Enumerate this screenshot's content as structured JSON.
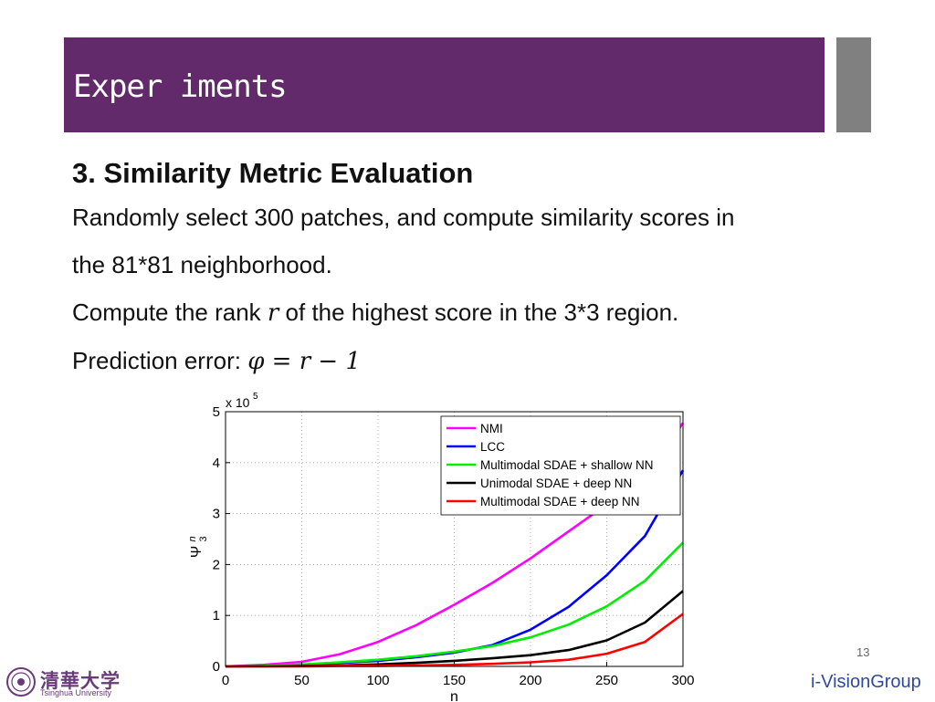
{
  "header": {
    "title": "Exper iments"
  },
  "content": {
    "heading": "3. Similarity Metric Evaluation",
    "line1": "Randomly select 300 patches, and compute similarity scores in",
    "line2": "the 81*81 neighborhood.",
    "line3_pre": "Compute the rank ",
    "line3_var": "r",
    "line3_post": " of the highest score in the 3*3 region.",
    "line4_pre": "Prediction error: ",
    "line4_formula": "φ = r − 1"
  },
  "footer": {
    "page_number": "13",
    "brand": "i-VisionGroup",
    "logo_cn": "清華大学",
    "logo_en": "Tsinghua University"
  },
  "chart_data": {
    "type": "line",
    "title": "",
    "xlabel": "n",
    "ylabel": "Ψ",
    "ylabel_sup": "n",
    "ylabel_sub": "3",
    "y_multiplier": "x 10",
    "y_multiplier_exp": "5",
    "xlim": [
      0,
      300
    ],
    "ylim": [
      0,
      5
    ],
    "xticks": [
      "0",
      "50",
      "100",
      "150",
      "200",
      "250",
      "300"
    ],
    "yticks": [
      "0",
      "1",
      "2",
      "3",
      "4",
      "5"
    ],
    "grid": true,
    "legend_position": "top-right",
    "x": [
      0,
      25,
      50,
      75,
      100,
      125,
      150,
      175,
      200,
      225,
      250,
      275,
      300
    ],
    "series": [
      {
        "name": "NMI",
        "color": "#ff00ff",
        "values": [
          0,
          0.03,
          0.09,
          0.24,
          0.48,
          0.81,
          1.21,
          1.64,
          2.12,
          2.65,
          3.18,
          3.68,
          4.78
        ]
      },
      {
        "name": "LCC",
        "color": "#0000ff",
        "values": [
          0,
          0.01,
          0.03,
          0.07,
          0.11,
          0.18,
          0.27,
          0.42,
          0.72,
          1.17,
          1.79,
          2.56,
          3.85
        ]
      },
      {
        "name": "Multimodal SDAE + shallow NN",
        "color": "#00ee00",
        "values": [
          0,
          0.01,
          0.04,
          0.08,
          0.13,
          0.2,
          0.29,
          0.4,
          0.57,
          0.82,
          1.18,
          1.68,
          2.43
        ]
      },
      {
        "name": "Unimodal SDAE + deep NN",
        "color": "#000000",
        "values": [
          0,
          0.0,
          0.01,
          0.02,
          0.04,
          0.07,
          0.11,
          0.16,
          0.22,
          0.32,
          0.51,
          0.86,
          1.48
        ]
      },
      {
        "name": "Multimodal SDAE + deep NN",
        "color": "#ff0000",
        "values": [
          0,
          0.0,
          0.0,
          0.01,
          0.01,
          0.02,
          0.03,
          0.05,
          0.08,
          0.13,
          0.25,
          0.48,
          1.03
        ]
      }
    ]
  }
}
